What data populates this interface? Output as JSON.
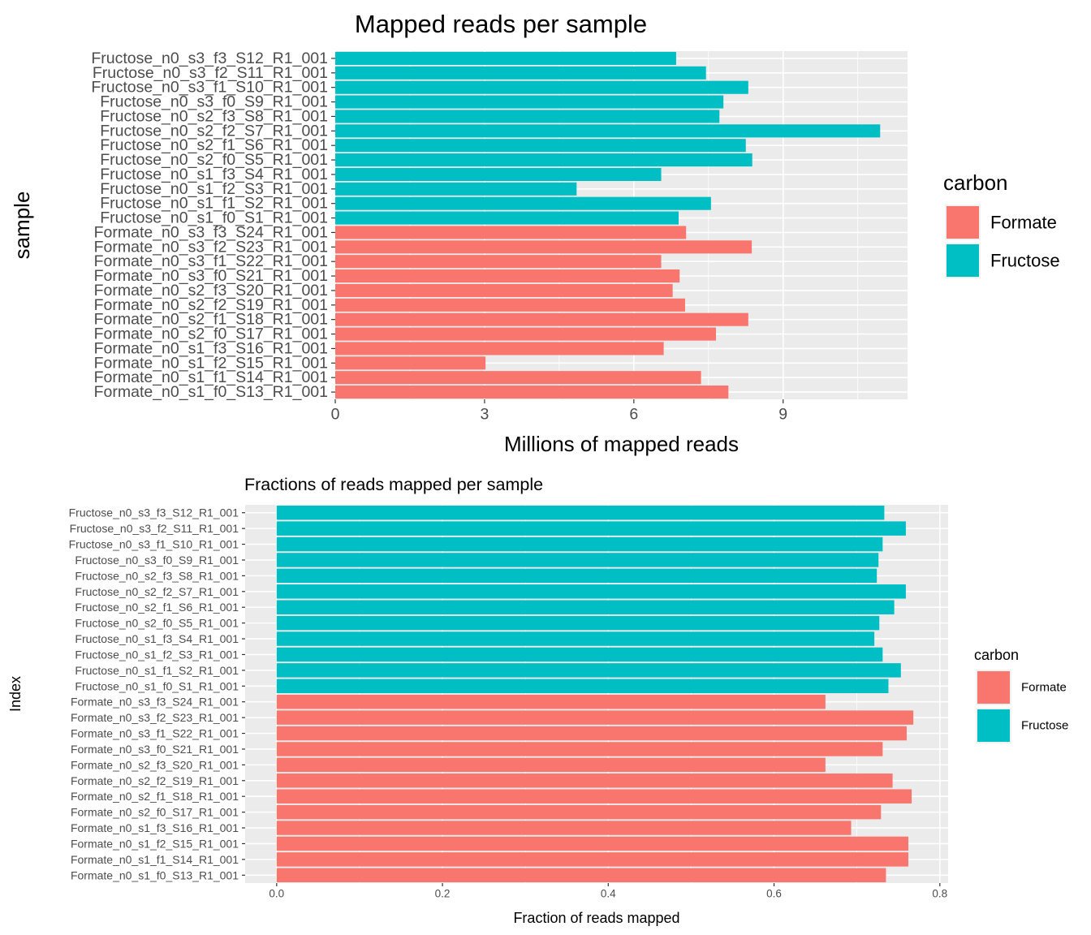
{
  "chart_data": [
    {
      "type": "bar",
      "orientation": "horizontal",
      "title": "Mapped reads per sample",
      "xlabel": "Millions of mapped reads",
      "ylabel": "sample",
      "xlim": [
        0,
        11.5
      ],
      "xticks": [
        0,
        3,
        6,
        9
      ],
      "grid": true,
      "legend": {
        "title": "carbon",
        "position": "right",
        "entries": [
          {
            "label": "Formate",
            "color": "#F8766D"
          },
          {
            "label": "Fructose",
            "color": "#00BFC4"
          }
        ]
      },
      "categories": [
        "Fructose_n0_s3_f3_S12_R1_001",
        "Fructose_n0_s3_f2_S11_R1_001",
        "Fructose_n0_s3_f1_S10_R1_001",
        "Fructose_n0_s3_f0_S9_R1_001",
        "Fructose_n0_s2_f3_S8_R1_001",
        "Fructose_n0_s2_f2_S7_R1_001",
        "Fructose_n0_s2_f1_S6_R1_001",
        "Fructose_n0_s2_f0_S5_R1_001",
        "Fructose_n0_s1_f3_S4_R1_001",
        "Fructose_n0_s1_f2_S3_R1_001",
        "Fructose_n0_s1_f1_S2_R1_001",
        "Fructose_n0_s1_f0_S1_R1_001",
        "Formate_n0_s3_f3_S24_R1_001",
        "Formate_n0_s3_f2_S23_R1_001",
        "Formate_n0_s3_f1_S22_R1_001",
        "Formate_n0_s3_f0_S21_R1_001",
        "Formate_n0_s2_f3_S20_R1_001",
        "Formate_n0_s2_f2_S19_R1_001",
        "Formate_n0_s2_f1_S18_R1_001",
        "Formate_n0_s2_f0_S17_R1_001",
        "Formate_n0_s1_f3_S16_R1_001",
        "Formate_n0_s1_f2_S15_R1_001",
        "Formate_n0_s1_f1_S14_R1_001",
        "Formate_n0_s1_f0_S13_R1_001"
      ],
      "values": [
        6.85,
        7.45,
        8.3,
        7.8,
        7.72,
        10.95,
        8.25,
        8.38,
        6.55,
        4.85,
        7.55,
        6.9,
        7.05,
        8.37,
        6.55,
        6.92,
        6.78,
        7.03,
        8.3,
        7.65,
        6.6,
        3.02,
        7.35,
        7.9
      ],
      "groups": [
        "Fructose",
        "Fructose",
        "Fructose",
        "Fructose",
        "Fructose",
        "Fructose",
        "Fructose",
        "Fructose",
        "Fructose",
        "Fructose",
        "Fructose",
        "Fructose",
        "Formate",
        "Formate",
        "Formate",
        "Formate",
        "Formate",
        "Formate",
        "Formate",
        "Formate",
        "Formate",
        "Formate",
        "Formate",
        "Formate"
      ]
    },
    {
      "type": "bar",
      "orientation": "horizontal",
      "title": "Fractions of reads mapped per sample",
      "xlabel": "Fraction of reads mapped",
      "ylabel": "Index",
      "xlim": [
        -0.038,
        0.81
      ],
      "xticks": [
        0.0,
        0.2,
        0.4,
        0.6,
        0.8
      ],
      "xtick_labels": [
        "0.0",
        "0.2",
        "0.4",
        "0.6",
        "0.8"
      ],
      "grid": true,
      "legend": {
        "title": "carbon",
        "position": "right",
        "entries": [
          {
            "label": "Formate",
            "color": "#F8766D"
          },
          {
            "label": "Fructose",
            "color": "#00BFC4"
          }
        ]
      },
      "categories": [
        "Fructose_n0_s3_f3_S12_R1_001",
        "Fructose_n0_s3_f2_S11_R1_001",
        "Fructose_n0_s3_f1_S10_R1_001",
        "Fructose_n0_s3_f0_S9_R1_001",
        "Fructose_n0_s2_f3_S8_R1_001",
        "Fructose_n0_s2_f2_S7_R1_001",
        "Fructose_n0_s2_f1_S6_R1_001",
        "Fructose_n0_s2_f0_S5_R1_001",
        "Fructose_n0_s1_f3_S4_R1_001",
        "Fructose_n0_s1_f2_S3_R1_001",
        "Fructose_n0_s1_f1_S2_R1_001",
        "Fructose_n0_s1_f0_S1_R1_001",
        "Formate_n0_s3_f3_S24_R1_001",
        "Formate_n0_s3_f2_S23_R1_001",
        "Formate_n0_s3_f1_S22_R1_001",
        "Formate_n0_s3_f0_S21_R1_001",
        "Formate_n0_s2_f3_S20_R1_001",
        "Formate_n0_s2_f2_S19_R1_001",
        "Formate_n0_s2_f1_S18_R1_001",
        "Formate_n0_s2_f0_S17_R1_001",
        "Formate_n0_s1_f3_S16_R1_001",
        "Formate_n0_s1_f2_S15_R1_001",
        "Formate_n0_s1_f1_S14_R1_001",
        "Formate_n0_s1_f0_S13_R1_001"
      ],
      "values": [
        0.733,
        0.759,
        0.731,
        0.726,
        0.724,
        0.759,
        0.745,
        0.727,
        0.721,
        0.731,
        0.753,
        0.738,
        0.662,
        0.768,
        0.76,
        0.731,
        0.662,
        0.743,
        0.766,
        0.729,
        0.693,
        0.762,
        0.762,
        0.735
      ],
      "groups": [
        "Fructose",
        "Fructose",
        "Fructose",
        "Fructose",
        "Fructose",
        "Fructose",
        "Fructose",
        "Fructose",
        "Fructose",
        "Fructose",
        "Fructose",
        "Fructose",
        "Formate",
        "Formate",
        "Formate",
        "Formate",
        "Formate",
        "Formate",
        "Formate",
        "Formate",
        "Formate",
        "Formate",
        "Formate",
        "Formate"
      ]
    }
  ]
}
